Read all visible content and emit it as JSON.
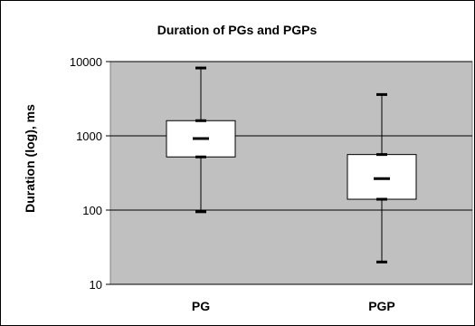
{
  "chart_data": {
    "type": "boxplot",
    "title": "Duration of PGs and PGPs",
    "xlabel": "",
    "ylabel": "Duration (log), ms",
    "yscale": "log",
    "ylim": [
      10,
      10000
    ],
    "yticks": [
      "10",
      "100",
      "1000",
      "10000"
    ],
    "categories": [
      "PG",
      "PGP"
    ],
    "boxes": [
      {
        "category": "PG",
        "min": 95,
        "q1": 520,
        "median": 920,
        "q3": 1600,
        "max": 8200
      },
      {
        "category": "PGP",
        "min": 20,
        "q1": 140,
        "median": 265,
        "q3": 560,
        "max": 3600
      }
    ],
    "grid": true,
    "legend": "none",
    "colors": {
      "plot_area": "#c0c0c0",
      "box": "#ffffff",
      "lines": "#000000"
    }
  }
}
